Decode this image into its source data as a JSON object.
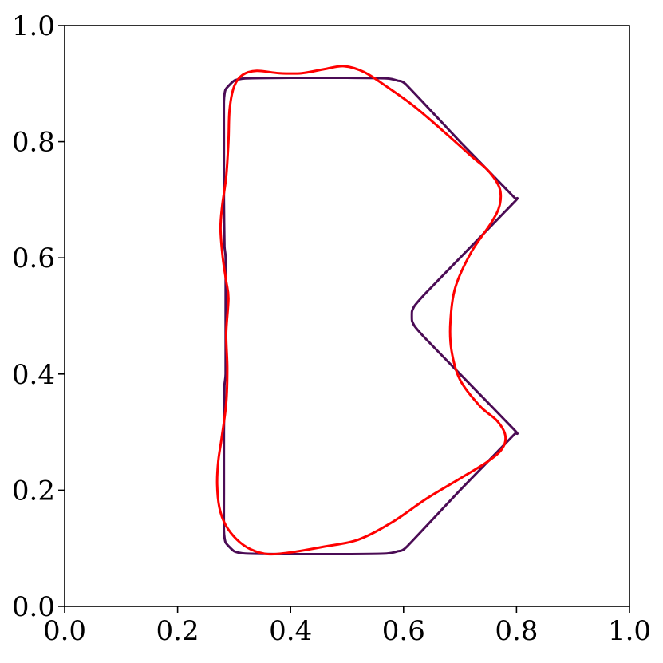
{
  "chart_data": {
    "type": "line",
    "title": "",
    "xlabel": "",
    "ylabel": "",
    "xlim": [
      0.0,
      1.0
    ],
    "ylim": [
      0.0,
      1.0
    ],
    "grid": false,
    "x_ticks": [
      0.0,
      0.2,
      0.4,
      0.6,
      0.8,
      1.0
    ],
    "y_ticks": [
      0.0,
      0.2,
      0.4,
      0.6,
      0.8,
      1.0
    ],
    "x_tick_labels": [
      "0.0",
      "0.2",
      "0.4",
      "0.6",
      "0.8",
      "1.0"
    ],
    "y_tick_labels": [
      "0.0",
      "0.2",
      "0.4",
      "0.6",
      "0.8",
      "1.0"
    ],
    "series": [
      {
        "color": "#4b0c55",
        "closed": true,
        "points": [
          [
            0.285,
            0.6
          ],
          [
            0.283,
            0.62
          ],
          [
            0.282,
            0.7
          ],
          [
            0.282,
            0.8
          ],
          [
            0.282,
            0.87
          ],
          [
            0.285,
            0.89
          ],
          [
            0.3,
            0.905
          ],
          [
            0.32,
            0.909
          ],
          [
            0.4,
            0.91
          ],
          [
            0.5,
            0.91
          ],
          [
            0.57,
            0.909
          ],
          [
            0.59,
            0.905
          ],
          [
            0.605,
            0.898
          ],
          [
            0.7,
            0.8
          ],
          [
            0.79,
            0.71
          ],
          [
            0.798,
            0.702
          ],
          [
            0.798,
            0.698
          ],
          [
            0.7,
            0.6
          ],
          [
            0.64,
            0.54
          ],
          [
            0.62,
            0.518
          ],
          [
            0.615,
            0.508
          ],
          [
            0.615,
            0.492
          ],
          [
            0.62,
            0.482
          ],
          [
            0.64,
            0.46
          ],
          [
            0.7,
            0.4
          ],
          [
            0.798,
            0.302
          ],
          [
            0.798,
            0.298
          ],
          [
            0.79,
            0.29
          ],
          [
            0.7,
            0.2
          ],
          [
            0.605,
            0.102
          ],
          [
            0.59,
            0.095
          ],
          [
            0.57,
            0.091
          ],
          [
            0.5,
            0.09
          ],
          [
            0.4,
            0.09
          ],
          [
            0.32,
            0.091
          ],
          [
            0.3,
            0.095
          ],
          [
            0.285,
            0.11
          ],
          [
            0.282,
            0.13
          ],
          [
            0.282,
            0.2
          ],
          [
            0.282,
            0.3
          ],
          [
            0.283,
            0.38
          ],
          [
            0.285,
            0.4
          ],
          [
            0.285,
            0.5
          ]
        ]
      },
      {
        "color": "#ff0000",
        "closed": true,
        "points": [
          [
            0.29,
            0.53
          ],
          [
            0.286,
            0.47
          ],
          [
            0.288,
            0.41
          ],
          [
            0.286,
            0.35
          ],
          [
            0.278,
            0.29
          ],
          [
            0.272,
            0.25
          ],
          [
            0.27,
            0.21
          ],
          [
            0.274,
            0.17
          ],
          [
            0.285,
            0.14
          ],
          [
            0.305,
            0.115
          ],
          [
            0.33,
            0.098
          ],
          [
            0.36,
            0.09
          ],
          [
            0.4,
            0.093
          ],
          [
            0.46,
            0.103
          ],
          [
            0.52,
            0.115
          ],
          [
            0.58,
            0.145
          ],
          [
            0.64,
            0.185
          ],
          [
            0.7,
            0.22
          ],
          [
            0.75,
            0.25
          ],
          [
            0.775,
            0.272
          ],
          [
            0.78,
            0.295
          ],
          [
            0.765,
            0.32
          ],
          [
            0.735,
            0.345
          ],
          [
            0.7,
            0.39
          ],
          [
            0.685,
            0.44
          ],
          [
            0.683,
            0.49
          ],
          [
            0.692,
            0.55
          ],
          [
            0.72,
            0.61
          ],
          [
            0.755,
            0.66
          ],
          [
            0.77,
            0.69
          ],
          [
            0.77,
            0.72
          ],
          [
            0.75,
            0.75
          ],
          [
            0.72,
            0.775
          ],
          [
            0.68,
            0.81
          ],
          [
            0.62,
            0.86
          ],
          [
            0.57,
            0.895
          ],
          [
            0.53,
            0.92
          ],
          [
            0.495,
            0.93
          ],
          [
            0.46,
            0.925
          ],
          [
            0.42,
            0.918
          ],
          [
            0.38,
            0.918
          ],
          [
            0.34,
            0.922
          ],
          [
            0.315,
            0.915
          ],
          [
            0.3,
            0.895
          ],
          [
            0.292,
            0.855
          ],
          [
            0.29,
            0.8
          ],
          [
            0.286,
            0.74
          ],
          [
            0.279,
            0.69
          ],
          [
            0.276,
            0.65
          ],
          [
            0.28,
            0.6
          ],
          [
            0.286,
            0.56
          ]
        ]
      }
    ]
  }
}
